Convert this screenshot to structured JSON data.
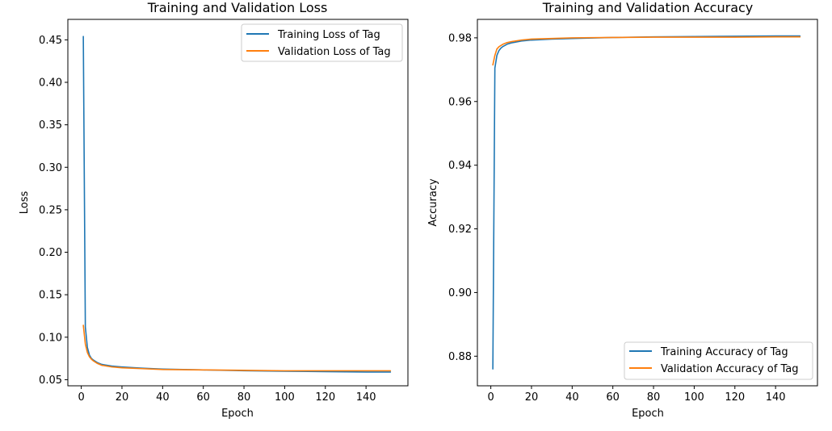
{
  "chart_data": [
    {
      "type": "line",
      "title": "Training and Validation Loss",
      "xlabel": "Epoch",
      "ylabel": "Loss",
      "xlim": [
        -6.6,
        160.6
      ],
      "ylim": [
        0.0428,
        0.4741
      ],
      "xticks": [
        0,
        20,
        40,
        60,
        80,
        100,
        120,
        140
      ],
      "xtick_labels": [
        "0",
        "20",
        "40",
        "60",
        "80",
        "100",
        "120",
        "140"
      ],
      "yticks": [
        0.05,
        0.1,
        0.15,
        0.2,
        0.25,
        0.3,
        0.35,
        0.4,
        0.45
      ],
      "ytick_labels": [
        "0.05",
        "0.10",
        "0.15",
        "0.20",
        "0.25",
        "0.30",
        "0.35",
        "0.40",
        "0.45"
      ],
      "grid": false,
      "legend_position": "top-right",
      "series": [
        {
          "name": "Training Loss of Tag",
          "color": "#1f77b4",
          "x": [
            1,
            2,
            3,
            4,
            5,
            6,
            8,
            10,
            15,
            20,
            30,
            40,
            60,
            80,
            100,
            120,
            140,
            152
          ],
          "y": [
            0.454,
            0.112,
            0.088,
            0.079,
            0.075,
            0.073,
            0.07,
            0.068,
            0.066,
            0.065,
            0.0635,
            0.0625,
            0.0615,
            0.0605,
            0.06,
            0.0595,
            0.059,
            0.059
          ]
        },
        {
          "name": "Validation Loss of Tag",
          "color": "#ff7f0e",
          "x": [
            1,
            2,
            3,
            4,
            5,
            6,
            8,
            10,
            15,
            20,
            30,
            40,
            60,
            80,
            100,
            120,
            140,
            152
          ],
          "y": [
            0.114,
            0.092,
            0.082,
            0.077,
            0.074,
            0.072,
            0.069,
            0.067,
            0.065,
            0.064,
            0.063,
            0.062,
            0.0615,
            0.061,
            0.0605,
            0.0605,
            0.0605,
            0.0605
          ]
        }
      ]
    },
    {
      "type": "line",
      "title": "Training and Validation Accuracy",
      "xlabel": "Epoch",
      "ylabel": "Accuracy",
      "xlim": [
        -6.6,
        160.6
      ],
      "ylim": [
        0.8707,
        0.9858
      ],
      "xticks": [
        0,
        20,
        40,
        60,
        80,
        100,
        120,
        140
      ],
      "xtick_labels": [
        "0",
        "20",
        "40",
        "60",
        "80",
        "100",
        "120",
        "140"
      ],
      "yticks": [
        0.88,
        0.9,
        0.92,
        0.94,
        0.96,
        0.98
      ],
      "ytick_labels": [
        "0.88",
        "0.90",
        "0.92",
        "0.94",
        "0.96",
        "0.98"
      ],
      "grid": false,
      "legend_position": "bottom-right",
      "series": [
        {
          "name": "Training Accuracy of Tag",
          "color": "#1f77b4",
          "x": [
            1,
            2,
            3,
            4,
            5,
            6,
            8,
            10,
            15,
            20,
            30,
            40,
            60,
            80,
            100,
            120,
            140,
            152
          ],
          "y": [
            0.876,
            0.9705,
            0.9745,
            0.976,
            0.9768,
            0.9773,
            0.978,
            0.9784,
            0.979,
            0.9793,
            0.9796,
            0.9798,
            0.9801,
            0.9803,
            0.9804,
            0.9805,
            0.9806,
            0.9806
          ]
        },
        {
          "name": "Validation Accuracy of Tag",
          "color": "#ff7f0e",
          "x": [
            1,
            2,
            3,
            4,
            5,
            6,
            8,
            10,
            15,
            20,
            30,
            40,
            60,
            80,
            100,
            120,
            140,
            152
          ],
          "y": [
            0.9715,
            0.9745,
            0.9765,
            0.9772,
            0.9776,
            0.978,
            0.9785,
            0.9788,
            0.9793,
            0.9796,
            0.9798,
            0.98,
            0.9801,
            0.9802,
            0.9802,
            0.9802,
            0.9803,
            0.9803
          ]
        }
      ]
    }
  ]
}
